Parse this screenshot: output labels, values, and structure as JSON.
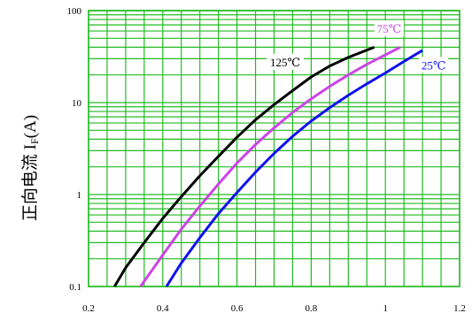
{
  "chart_data": {
    "type": "line",
    "title": "",
    "xlabel": "",
    "ylabel": {
      "main": "正向电流 I",
      "subscript": "F",
      "suffix": "(A)"
    },
    "x_scale": "linear",
    "y_scale": "log",
    "xlim": [
      0.2,
      1.2
    ],
    "ylim": [
      0.1,
      100
    ],
    "x_ticks": [
      0.2,
      0.4,
      0.6,
      0.8,
      1.0,
      1.2
    ],
    "x_tick_labels": [
      "0.2",
      "0.4",
      "0.6",
      "0.8",
      "1",
      "1.2"
    ],
    "y_ticks": [
      0.1,
      1,
      10,
      100
    ],
    "y_tick_labels": [
      "0.1",
      "1",
      "10",
      "100"
    ],
    "x_gridline_step": 0.05,
    "grid": true,
    "series": [
      {
        "name": "125℃",
        "color": "#000000",
        "x": [
          0.27,
          0.3,
          0.35,
          0.4,
          0.45,
          0.5,
          0.55,
          0.6,
          0.65,
          0.7,
          0.75,
          0.8,
          0.85,
          0.9,
          0.97
        ],
        "y": [
          0.1,
          0.16,
          0.3,
          0.55,
          0.95,
          1.6,
          2.6,
          4.2,
          6.5,
          9.5,
          13.5,
          19,
          25,
          31,
          40
        ]
      },
      {
        "name": "75℃",
        "color": "#cc44e6",
        "x": [
          0.34,
          0.4,
          0.45,
          0.5,
          0.55,
          0.6,
          0.65,
          0.7,
          0.75,
          0.8,
          0.85,
          0.9,
          0.95,
          1.0,
          1.04
        ],
        "y": [
          0.1,
          0.22,
          0.42,
          0.75,
          1.3,
          2.2,
          3.5,
          5.3,
          7.8,
          11,
          15,
          20,
          26,
          33,
          40
        ]
      },
      {
        "name": "25℃",
        "color": "#1010ee",
        "x": [
          0.41,
          0.45,
          0.5,
          0.55,
          0.6,
          0.65,
          0.7,
          0.75,
          0.8,
          0.85,
          0.9,
          0.95,
          1.0,
          1.05,
          1.1
        ],
        "y": [
          0.1,
          0.18,
          0.34,
          0.62,
          1.05,
          1.75,
          2.8,
          4.3,
          6.3,
          8.8,
          12,
          16,
          21,
          28,
          37
        ]
      }
    ],
    "annotations": [
      {
        "text": "125℃",
        "color": "#000000"
      },
      {
        "text": "75℃",
        "color": "#cc44e6"
      },
      {
        "text": "25℃",
        "color": "#1010ee"
      }
    ],
    "colors": {
      "grid": "#22bb22",
      "background": "#ffffff",
      "tick_text": "#000000"
    }
  }
}
